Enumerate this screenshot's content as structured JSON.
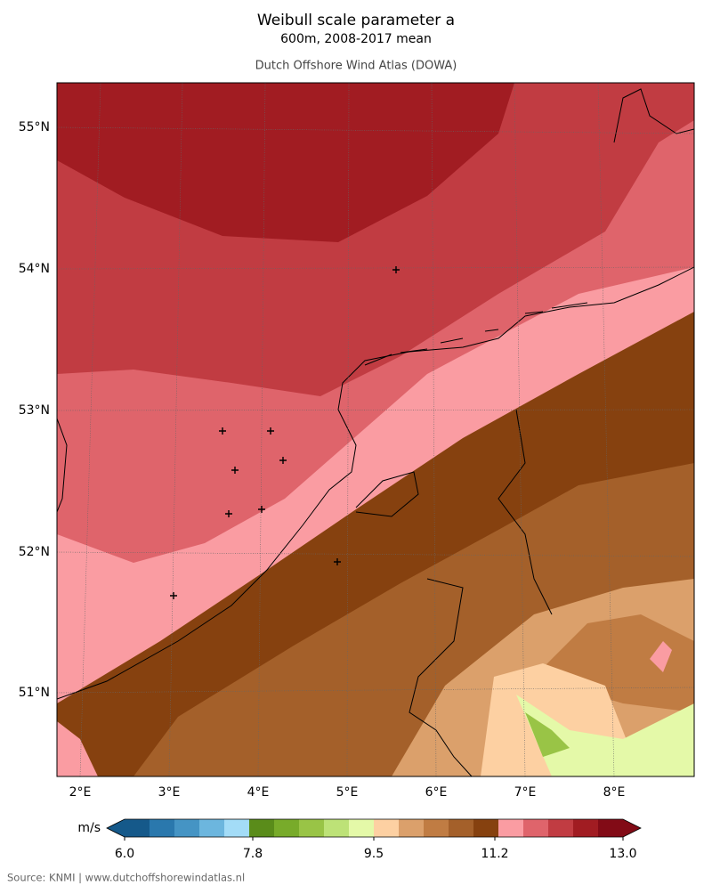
{
  "header": {
    "title": "Weibull scale parameter a",
    "subtitle": "600m, 2008-2017 mean",
    "source_line": "Dutch Offshore Wind Atlas (DOWA)"
  },
  "map": {
    "lat_labels": [
      "55°N",
      "54°N",
      "53°N",
      "52°N",
      "51°N"
    ],
    "lon_labels": [
      "2°E",
      "3°E",
      "4°E",
      "5°E",
      "6°E",
      "7°E",
      "8°E"
    ]
  },
  "colorbar": {
    "unit": "m/s",
    "lim": [
      6,
      13
    ],
    "ticks": [
      {
        "value": 6,
        "label": "6.0"
      },
      {
        "value": 7.8,
        "label": "7.8"
      },
      {
        "value": 9.5,
        "label": "9.5"
      },
      {
        "value": 11.2,
        "label": "11.2"
      },
      {
        "value": 13,
        "label": "13.0"
      }
    ],
    "colors": [
      "#15598a",
      "#2a78ad",
      "#4594c4",
      "#6cb6de",
      "#a3dcf7",
      "#5a8c1a",
      "#78ab2a",
      "#99c446",
      "#bde277",
      "#e4f9a8",
      "#fdd0a2",
      "#dba06b",
      "#c07c43",
      "#a4602a",
      "#86410f",
      "#fa9ca2",
      "#df646b",
      "#c13c42",
      "#a11c22",
      "#820b16"
    ]
  },
  "footer": {
    "source": "Source: KNMI | www.dutchoffshorewindatlas.nl"
  }
}
